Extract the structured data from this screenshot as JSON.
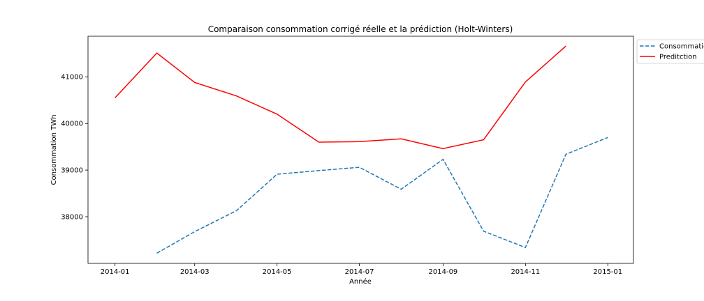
{
  "chart_data": {
    "type": "line",
    "title": "Comparaison consommation corrigé réelle et la prédiction (Holt-Winters)",
    "xlabel": "Année",
    "ylabel": "Consommation TWh",
    "x_ticks": [
      "2014-01",
      "2014-03",
      "2014-05",
      "2014-07",
      "2014-09",
      "2014-11",
      "2015-01"
    ],
    "y_ticks": [
      38000,
      39000,
      40000,
      41000
    ],
    "xlim": [
      "2013-12-12",
      "2015-01-20"
    ],
    "ylim": [
      37000,
      41870
    ],
    "grid": false,
    "legend_position": "outside-right",
    "series": [
      {
        "name": "Consommatio",
        "color": "#1f77b4",
        "style": "dashed",
        "x": [
          "2014-02-01",
          "2014-03-01",
          "2014-04-01",
          "2014-05-01",
          "2014-06-01",
          "2014-07-01",
          "2014-08-01",
          "2014-09-01",
          "2014-10-01",
          "2014-11-01",
          "2014-12-01",
          "2015-01-01"
        ],
        "y": [
          37220,
          37680,
          38130,
          38910,
          38990,
          39060,
          38590,
          39230,
          37690,
          37340,
          39340,
          39700
        ]
      },
      {
        "name": "Preditction",
        "color": "#ff0000",
        "style": "solid",
        "x": [
          "2014-01-01",
          "2014-02-01",
          "2014-03-01",
          "2014-04-01",
          "2014-05-01",
          "2014-06-01",
          "2014-07-01",
          "2014-08-01",
          "2014-09-01",
          "2014-10-01",
          "2014-11-01",
          "2014-12-01"
        ],
        "y": [
          40550,
          41510,
          40880,
          40590,
          40200,
          39600,
          39610,
          39670,
          39460,
          39650,
          40890,
          41660
        ]
      }
    ]
  }
}
